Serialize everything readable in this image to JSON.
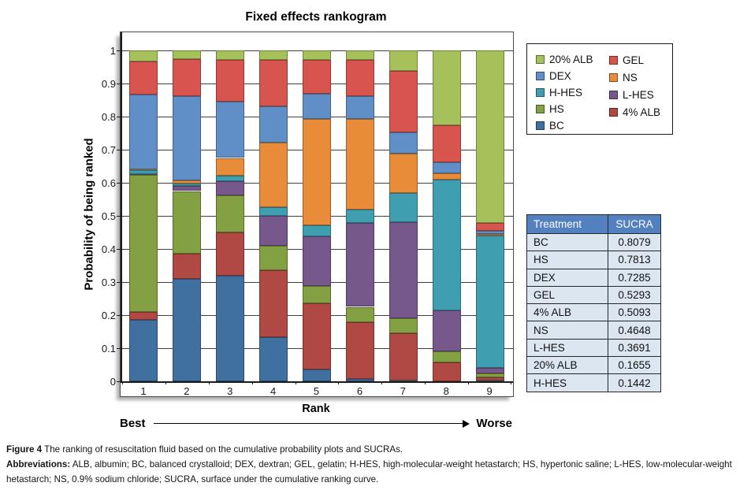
{
  "chart_data": {
    "type": "stacked_bar",
    "title": "Fixed effects rankogram",
    "xlabel": "Rank",
    "ylabel": "Probability of being ranked",
    "categories": [
      "1",
      "2",
      "3",
      "4",
      "5",
      "6",
      "7",
      "8",
      "9"
    ],
    "ylim": [
      0,
      1
    ],
    "yticks": [
      0,
      0.1,
      0.2,
      0.3,
      0.4,
      0.5,
      0.6,
      0.7,
      0.8,
      0.9,
      1
    ],
    "grid": "horizontal",
    "legend_position": "outside-right",
    "axis_annotation": {
      "left": "Best",
      "right": "Worse"
    },
    "stack_note": "series listed bottom-to-top of each bar; values are probability of being ranked at rank 1..9",
    "series": [
      {
        "name": "BC",
        "color": "#40709F",
        "values": [
          0.185,
          0.31,
          0.318,
          0.133,
          0.036,
          0.008,
          0.002,
          0.001,
          0.002
        ]
      },
      {
        "name": "4% ALB",
        "color": "#B04843",
        "values": [
          0.025,
          0.075,
          0.132,
          0.202,
          0.199,
          0.17,
          0.143,
          0.056,
          0.01
        ]
      },
      {
        "name": "HS",
        "color": "#83A042",
        "values": [
          0.415,
          0.19,
          0.113,
          0.075,
          0.052,
          0.047,
          0.045,
          0.033,
          0.012
        ]
      },
      {
        "name": "L-HES",
        "color": "#77588D",
        "values": [
          0.002,
          0.015,
          0.042,
          0.09,
          0.151,
          0.253,
          0.29,
          0.125,
          0.016
        ]
      },
      {
        "name": "H-HES",
        "color": "#3F9FB0",
        "values": [
          0.01,
          0.008,
          0.017,
          0.027,
          0.034,
          0.04,
          0.09,
          0.395,
          0.4
        ]
      },
      {
        "name": "NS",
        "color": "#E98C3A",
        "values": [
          0.003,
          0.01,
          0.053,
          0.195,
          0.321,
          0.275,
          0.118,
          0.018,
          0.006
        ]
      },
      {
        "name": "DEX",
        "color": "#608FC7",
        "values": [
          0.227,
          0.254,
          0.17,
          0.11,
          0.075,
          0.068,
          0.064,
          0.035,
          0.008
        ]
      },
      {
        "name": "GEL",
        "color": "#D8544F",
        "values": [
          0.1,
          0.113,
          0.127,
          0.14,
          0.104,
          0.111,
          0.186,
          0.112,
          0.024
        ]
      },
      {
        "name": "20% ALB",
        "color": "#A7C15A",
        "values": [
          0.033,
          0.025,
          0.028,
          0.028,
          0.028,
          0.028,
          0.062,
          0.225,
          0.522
        ]
      }
    ]
  },
  "legend": {
    "columns": [
      [
        "20% ALB",
        "DEX",
        "H-HES",
        "HS",
        "BC"
      ],
      [
        "GEL",
        "NS",
        "L-HES",
        "4% ALB"
      ]
    ]
  },
  "table": {
    "headers": [
      "Treatment",
      "SUCRA"
    ],
    "rows": [
      [
        "BC",
        "0.8079"
      ],
      [
        "HS",
        "0.7813"
      ],
      [
        "DEX",
        "0.7285"
      ],
      [
        "GEL",
        "0.5293"
      ],
      [
        "4% ALB",
        "0.5093"
      ],
      [
        "NS",
        "0.4648"
      ],
      [
        "L-HES",
        "0.3691"
      ],
      [
        "20% ALB",
        "0.1655"
      ],
      [
        "H-HES",
        "0.1442"
      ]
    ]
  },
  "caption": {
    "figure_label": "Figure 4",
    "figure_text": " The ranking of resuscitation fluid based on the cumulative probability plots and SUCRAs.",
    "abbreviations_label": "Abbreviations:",
    "abbreviations_text": " ALB, albumin; BC, balanced crystalloid; DEX, dextran; GEL, gelatin; H-HES, high-molecular-weight hetastarch; HS, hypertonic saline; L-HES, low-molecular-weight hetastarch; NS, 0.9% sodium chloride; SUCRA, surface under the cumulative ranking curve."
  }
}
